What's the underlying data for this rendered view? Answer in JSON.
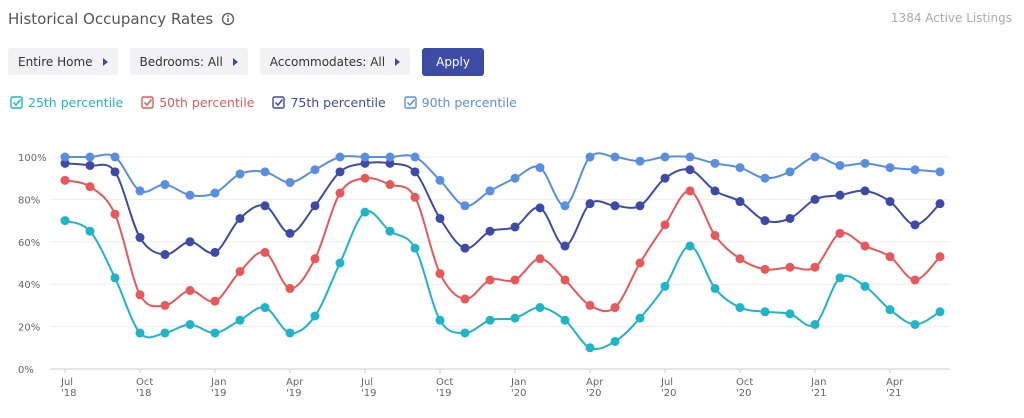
{
  "header": {
    "title": "Historical Occupancy Rates",
    "listings": "1384 Active Listings"
  },
  "filters": [
    "Entire Home",
    "Bedrooms: All",
    "Accommodates: All"
  ],
  "apply": "Apply",
  "chart_data": {
    "type": "line",
    "categories": [
      "Jul '18",
      null,
      null,
      "Oct '18",
      null,
      null,
      "Jan '19",
      null,
      null,
      "Apr '19",
      null,
      null,
      "Jul '19",
      null,
      null,
      "Oct '19",
      null,
      null,
      "Jan '20",
      null,
      null,
      "Apr '20",
      null,
      null,
      "Jul '20",
      null,
      null,
      "Oct '20",
      null,
      null,
      "Jan '21",
      null,
      null,
      "Apr '21",
      null,
      null
    ],
    "series": [
      {
        "name": "25th percentile",
        "color": "#1fb5c9",
        "values": [
          70,
          65,
          43,
          17,
          17,
          21,
          17,
          23,
          29,
          17,
          25,
          50,
          74,
          65,
          57,
          23,
          17,
          23,
          24,
          29,
          23,
          10,
          13,
          24,
          39,
          58,
          38,
          29,
          27,
          26,
          21,
          43,
          39,
          28,
          21,
          27
        ]
      },
      {
        "name": "50th percentile",
        "color": "#e8585a",
        "values": [
          89,
          86,
          73,
          35,
          30,
          37,
          32,
          46,
          55,
          38,
          52,
          83,
          90,
          87,
          81,
          45,
          33,
          42,
          42,
          52,
          42,
          30,
          29,
          50,
          68,
          84,
          63,
          52,
          47,
          48,
          48,
          64,
          58,
          53,
          42,
          53
        ]
      },
      {
        "name": "75th percentile",
        "color": "#3e4ba6",
        "values": [
          97,
          96,
          93,
          62,
          54,
          60,
          55,
          71,
          77,
          64,
          77,
          93,
          97,
          97,
          93,
          71,
          57,
          65,
          67,
          76,
          58,
          78,
          77,
          77,
          90,
          94,
          84,
          79,
          70,
          71,
          80,
          82,
          84,
          79,
          68,
          78
        ]
      },
      {
        "name": "90th percentile",
        "color": "#5a8ee0",
        "values": [
          100,
          100,
          100,
          84,
          87,
          82,
          83,
          92,
          93,
          88,
          94,
          100,
          100,
          100,
          100,
          89,
          77,
          84,
          90,
          95,
          77,
          100,
          100,
          98,
          100,
          100,
          97,
          95,
          90,
          93,
          100,
          96,
          97,
          95,
          94,
          93
        ]
      }
    ],
    "ylim": [
      0,
      100
    ],
    "yticks": [
      {
        "value": 0,
        "label": "0%"
      },
      {
        "value": 20,
        "label": "20%"
      },
      {
        "value": 40,
        "label": "40%"
      },
      {
        "value": 60,
        "label": "60%"
      },
      {
        "value": 80,
        "label": "80%"
      },
      {
        "value": 100,
        "label": "100%"
      }
    ],
    "grid": true
  }
}
